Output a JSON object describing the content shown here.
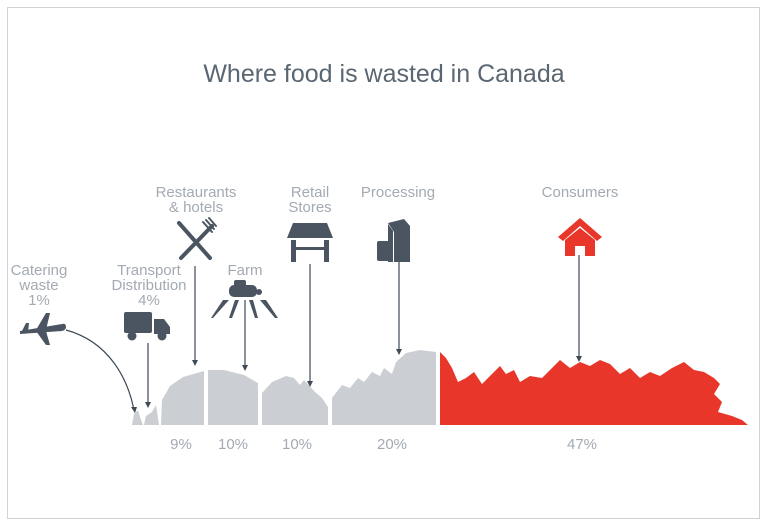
{
  "title": "Where food is wasted in Canada",
  "stages": [
    {
      "name_lines": [
        "Catering",
        "waste"
      ],
      "percent": "1%",
      "icon": "airplane-icon"
    },
    {
      "name_lines": [
        "Transport",
        "Distribution"
      ],
      "percent": "4%",
      "icon": "truck-icon"
    },
    {
      "name_lines": [
        "Restaurants",
        "& hotels"
      ],
      "percent": "9%",
      "icon": "fork-knife-icon"
    },
    {
      "name_lines": [
        "Farm"
      ],
      "percent": "10%",
      "icon": "tractor-irrigation-icon"
    },
    {
      "name_lines": [
        "Retail",
        "Stores"
      ],
      "percent": "10%",
      "icon": "storefront-icon"
    },
    {
      "name_lines": [
        "Processing"
      ],
      "percent": "20%",
      "icon": "packaged-goods-icon"
    },
    {
      "name_lines": [
        "Consumers"
      ],
      "percent": "47%",
      "icon": "house-icon"
    }
  ],
  "colors": {
    "grey": "#cbced3",
    "accent": "#e8372a",
    "icon": "#4a5561",
    "text": "#a3aab2",
    "title": "#5a6672"
  }
}
